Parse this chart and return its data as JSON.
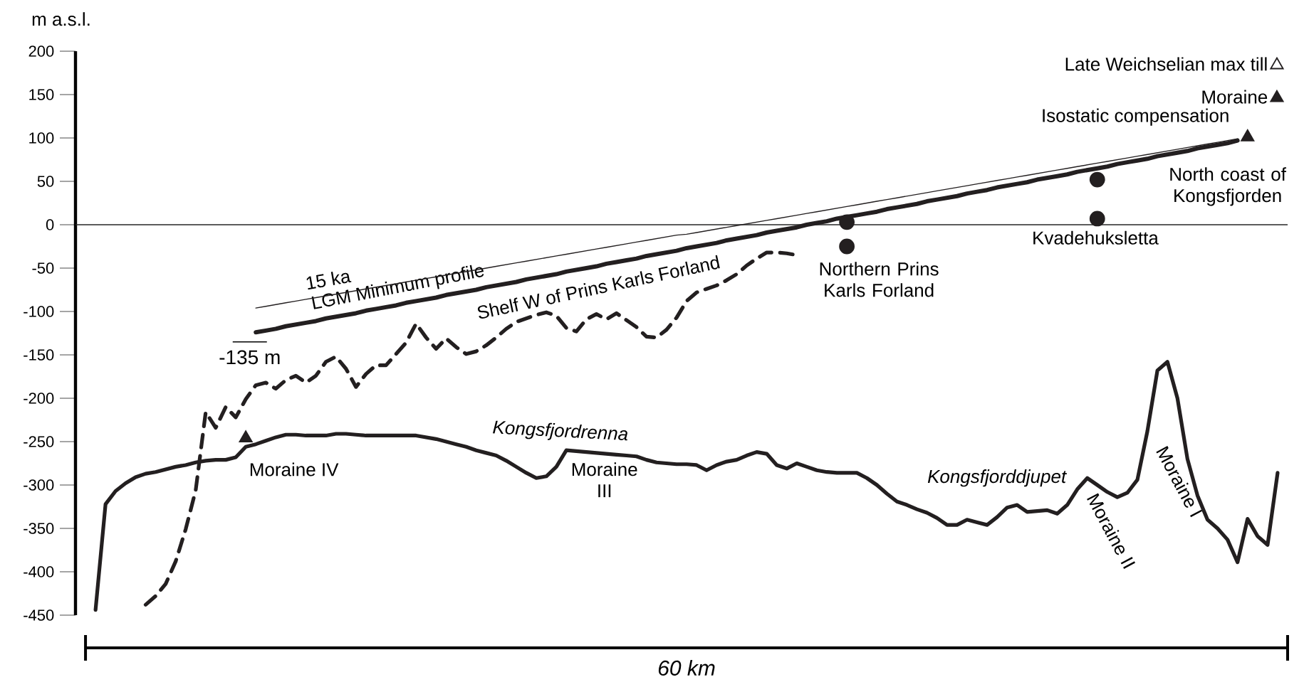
{
  "chart_data": {
    "type": "line",
    "ylabel": "m a.s.l.",
    "xlabel": "*60 km*",
    "categories": [
      null,
      null,
      null,
      null,
      null,
      null,
      null,
      null,
      null,
      null,
      null,
      null,
      null,
      null,
      null,
      null,
      null,
      null,
      null,
      null,
      null,
      null,
      null,
      null,
      null,
      null,
      null,
      null,
      null,
      null,
      null,
      null,
      null,
      null,
      null,
      null,
      null,
      null,
      null,
      null,
      null,
      null,
      null,
      null,
      null,
      null,
      null,
      null,
      null,
      null,
      null,
      null,
      null,
      null,
      null,
      null,
      null,
      null,
      null,
      null,
      null,
      null,
      null,
      null,
      null,
      null,
      null,
      null,
      null,
      null,
      null,
      null,
      null,
      null,
      null,
      null,
      null,
      null,
      null,
      null,
      null,
      null,
      null,
      null,
      null,
      null,
      null,
      null,
      null,
      null,
      null,
      null,
      null,
      null,
      null,
      null,
      null,
      null,
      null,
      null,
      null,
      null,
      null,
      null,
      null,
      null,
      null,
      null,
      null,
      null,
      null,
      null,
      null,
      null,
      null,
      null,
      null,
      null,
      null,
      null,
      null
    ],
    "ylim": [
      -450,
      200
    ],
    "yticks": [
      -450,
      -400,
      -350,
      -300,
      -250,
      -200,
      -150,
      -100,
      -50,
      0,
      50,
      100,
      150,
      200
    ],
    "tick_labels": "y",
    "legend": "top right",
    "ref_lines": [
      {
        "axis": "y",
        "value": 0
      }
    ],
    "series": [
      {
        "color": "#231f20",
        "line_style": "solid",
        "values": [
          null,
          -444,
          -322,
          -307,
          -298,
          -291,
          -287,
          -285,
          -282,
          -279,
          -277,
          -274,
          -272,
          -271,
          -271,
          -268,
          -256,
          -253,
          -249,
          -245,
          -242,
          -242,
          -243,
          -243,
          -243,
          -241,
          -241,
          -242,
          -243,
          -243,
          -243,
          -243,
          -243,
          -243,
          -245,
          -247,
          -250,
          -253,
          -256,
          -260,
          -263,
          -266,
          -272,
          -279,
          -286,
          -292,
          -290,
          -279,
          -260,
          -261,
          -262,
          -263,
          -264,
          -265,
          -266,
          -267,
          -271,
          -274,
          -275,
          -276,
          -276,
          -277,
          -283,
          -277,
          -273,
          -271,
          -266,
          -262,
          -264,
          -277,
          -281,
          -275,
          -279,
          -283,
          -285,
          -286,
          -286,
          -286,
          -292,
          -300,
          -310,
          -319,
          -323,
          -328,
          -332,
          -338,
          -346,
          -346,
          -340,
          -343,
          -346,
          -337,
          -326,
          -323,
          -331,
          -330,
          -329,
          -333,
          -323,
          -305,
          -292,
          -300,
          -308,
          -314,
          -309,
          -294,
          -238,
          -168,
          -158,
          -200,
          -270,
          -312,
          -340,
          -350,
          -363,
          -389,
          -339,
          -359,
          -369,
          -286,
          null
        ]
      },
      {
        "name": "Shelf W of Prins Karls Forland",
        "color": "#231f20",
        "line_style": "dashed",
        "values": [
          null,
          null,
          null,
          null,
          null,
          null,
          -438,
          -428,
          -414,
          -388,
          -351,
          -306,
          -216,
          -234,
          -210,
          -222,
          -201,
          -185,
          -182,
          -189,
          -179,
          -174,
          -182,
          -174,
          -158,
          -152,
          -166,
          -187,
          -172,
          -162,
          -162,
          -149,
          -136,
          -114,
          -130,
          -143,
          -131,
          -141,
          -149,
          -146,
          -139,
          -130,
          -120,
          -112,
          -108,
          -104,
          -101,
          -105,
          -119,
          -123,
          -109,
          -103,
          -109,
          -102,
          -110,
          -118,
          -129,
          -130,
          -121,
          -107,
          -88,
          -78,
          -74,
          -70,
          -64,
          -57,
          -47,
          -39,
          -32,
          -32,
          -33,
          -35,
          null,
          null,
          null,
          null,
          null,
          null,
          null,
          null,
          null,
          null,
          null,
          null,
          null,
          null,
          null,
          null,
          null,
          null,
          null,
          null,
          null,
          null,
          null,
          null,
          null,
          null,
          null,
          null,
          null,
          null,
          null,
          null,
          null,
          null,
          null,
          null,
          null,
          null,
          null,
          null,
          null,
          null,
          null,
          null,
          null,
          null,
          null,
          null,
          null
        ]
      },
      {
        "name": "LGM Minimum profile",
        "color": "#231f20",
        "line_style": "solid",
        "values": [
          null,
          null,
          null,
          null,
          null,
          null,
          null,
          null,
          null,
          null,
          null,
          null,
          null,
          null,
          null,
          null,
          null,
          -124,
          -122,
          -120,
          -117,
          -115,
          -113,
          -111,
          -108,
          -106,
          -104,
          -102,
          -99,
          -97,
          -95,
          -93,
          -90,
          -88,
          -86,
          -84,
          -81,
          -79,
          -77,
          -75,
          -72,
          -70,
          -68,
          -66,
          -63,
          -61,
          -59,
          -57,
          -54,
          -52,
          -50,
          -48,
          -45,
          -43,
          -41,
          -39,
          -36,
          -34,
          -32,
          -30,
          -27,
          -25,
          -23,
          -21,
          -18,
          -16,
          -14,
          -12,
          -9,
          -7,
          -5,
          -3,
          0,
          2,
          4,
          7,
          9,
          11,
          13,
          15,
          18,
          20,
          22,
          24,
          27,
          29,
          31,
          33,
          36,
          38,
          40,
          43,
          45,
          47,
          49,
          52,
          54,
          56,
          58,
          61,
          63,
          65,
          67,
          70,
          72,
          74,
          76,
          79,
          81,
          83,
          85,
          88,
          90,
          92,
          94,
          97,
          null,
          null,
          null,
          null,
          null
        ]
      },
      {
        "name": "15 ka",
        "color": "#231f20",
        "line_style": "solid",
        "values": [
          null,
          null,
          null,
          null,
          null,
          null,
          null,
          null,
          null,
          null,
          null,
          null,
          null,
          null,
          null,
          null,
          null,
          -96,
          -94,
          -92,
          -90,
          -88,
          -86,
          -84,
          -82,
          -80,
          -78,
          -76,
          -74,
          -72,
          -70,
          -68,
          -66,
          -64,
          -62,
          -60,
          -58,
          -56,
          -54,
          -52,
          -50,
          -48,
          -46,
          -44,
          -42,
          -40,
          -38,
          -36,
          -34,
          -32,
          -30,
          -28,
          -26,
          -24,
          -22,
          -20,
          -18,
          -16,
          -14,
          -12,
          -11,
          -9,
          -7,
          -5,
          -3,
          -1,
          1,
          3,
          5,
          7,
          9,
          11,
          13,
          15,
          17,
          19,
          21,
          23,
          25,
          27,
          29,
          31,
          33,
          35,
          37,
          39,
          41,
          43,
          45,
          47,
          49,
          51,
          53,
          55,
          57,
          59,
          61,
          63,
          65,
          67,
          69,
          71,
          73,
          75,
          77,
          79,
          81,
          83,
          85,
          87,
          89,
          91,
          93,
          95,
          97,
          99,
          null,
          null,
          null,
          null,
          null
        ]
      },
      {
        "name": "Late Weichselian max till",
        "type": "scatter",
        "marker": "triangle",
        "color": "#231f20",
        "values": [
          null,
          null,
          null,
          null,
          null,
          null,
          null,
          null,
          null,
          null,
          null,
          null,
          null,
          null,
          null,
          null,
          null,
          null,
          null,
          null,
          null,
          null,
          null,
          null,
          null,
          null,
          null,
          null,
          null,
          null,
          null,
          null,
          null,
          null,
          null,
          null,
          null,
          null,
          null,
          null,
          null,
          null,
          null,
          null,
          null,
          null,
          null,
          null,
          null,
          null,
          null,
          null,
          null,
          null,
          null,
          null,
          null,
          null,
          null,
          null,
          null,
          null,
          null,
          null,
          null,
          null,
          null,
          null,
          null,
          null,
          null,
          null,
          null,
          null,
          null,
          null,
          null,
          null,
          null,
          null,
          null,
          null,
          null,
          null,
          null,
          null,
          null,
          null,
          null,
          null,
          null,
          null,
          null,
          null,
          null,
          null,
          null,
          null,
          null,
          null,
          null,
          null,
          null,
          null,
          null,
          null,
          null,
          null,
          null,
          null,
          null,
          null,
          null,
          null,
          null,
          null,
          null,
          null,
          null,
          null,
          null
        ]
      },
      {
        "name": "Moraine",
        "type": "scatter",
        "marker": "triangle",
        "color": "#231f20",
        "values": [
          null,
          null,
          null,
          null,
          null,
          null,
          null,
          null,
          null,
          null,
          null,
          null,
          null,
          null,
          null,
          null,
          -246,
          null,
          null,
          null,
          null,
          null,
          null,
          null,
          null,
          null,
          null,
          null,
          null,
          null,
          null,
          null,
          null,
          null,
          null,
          null,
          null,
          null,
          null,
          null,
          null,
          null,
          null,
          null,
          null,
          null,
          null,
          null,
          null,
          null,
          null,
          null,
          null,
          null,
          null,
          null,
          null,
          null,
          null,
          null,
          null,
          null,
          null,
          null,
          null,
          null,
          null,
          null,
          null,
          null,
          null,
          null,
          null,
          null,
          null,
          null,
          null,
          null,
          null,
          null,
          null,
          null,
          null,
          null,
          null,
          null,
          null,
          null,
          null,
          null,
          null,
          null,
          null,
          null,
          null,
          null,
          null,
          null,
          null,
          null,
          null,
          null,
          null,
          null,
          null,
          null,
          null,
          null,
          null,
          null,
          null,
          null,
          null,
          null,
          null,
          null,
          101,
          null,
          null,
          null,
          null
        ]
      },
      {
        "type": "scatter",
        "marker": "circle",
        "color": "#231f20",
        "values": [
          null,
          null,
          null,
          null,
          null,
          null,
          null,
          null,
          null,
          null,
          null,
          null,
          null,
          null,
          null,
          null,
          null,
          null,
          null,
          null,
          null,
          null,
          null,
          null,
          null,
          null,
          null,
          null,
          null,
          null,
          null,
          null,
          null,
          null,
          null,
          null,
          null,
          null,
          null,
          null,
          null,
          null,
          null,
          null,
          null,
          null,
          null,
          null,
          null,
          null,
          null,
          null,
          null,
          null,
          null,
          null,
          null,
          null,
          null,
          null,
          null,
          null,
          null,
          null,
          null,
          null,
          null,
          null,
          null,
          null,
          null,
          null,
          null,
          null,
          null,
          null,
          3,
          null,
          null,
          null,
          null,
          null,
          null,
          null,
          null,
          null,
          null,
          null,
          null,
          null,
          null,
          null,
          null,
          null,
          null,
          null,
          null,
          null,
          null,
          null,
          null,
          52,
          null,
          null,
          null,
          null,
          null,
          null,
          null,
          null,
          null,
          null,
          null,
          null,
          null,
          null,
          null,
          null,
          null,
          null,
          null
        ]
      },
      {
        "type": "scatter",
        "marker": "circle",
        "color": "#231f20",
        "values": [
          null,
          null,
          null,
          null,
          null,
          null,
          null,
          null,
          null,
          null,
          null,
          null,
          null,
          null,
          null,
          null,
          null,
          null,
          null,
          null,
          null,
          null,
          null,
          null,
          null,
          null,
          null,
          null,
          null,
          null,
          null,
          null,
          null,
          null,
          null,
          null,
          null,
          null,
          null,
          null,
          null,
          null,
          null,
          null,
          null,
          null,
          null,
          null,
          null,
          null,
          null,
          null,
          null,
          null,
          null,
          null,
          null,
          null,
          null,
          null,
          null,
          null,
          null,
          null,
          null,
          null,
          null,
          null,
          null,
          null,
          null,
          null,
          null,
          null,
          null,
          null,
          -25,
          null,
          null,
          null,
          null,
          null,
          null,
          null,
          null,
          null,
          null,
          null,
          null,
          null,
          null,
          null,
          null,
          null,
          null,
          null,
          null,
          null,
          null,
          null,
          null,
          7,
          null,
          null,
          null,
          null,
          null,
          null,
          null,
          null,
          null,
          null,
          null,
          null,
          null,
          null,
          null,
          null,
          null,
          null,
          null
        ]
      }
    ],
    "annotations": [
      "-135 m",
      "Moraine IV",
      "*Kongsfjordrenna*",
      "Moraine III",
      "*Kongsfjorddjupet*",
      "Moraine II",
      "Moraine I",
      "Northern Prins Karls Forland",
      "Kvadehuksletta",
      "North coast of Kongsfjorden",
      "Isostatic compensation"
    ]
  }
}
